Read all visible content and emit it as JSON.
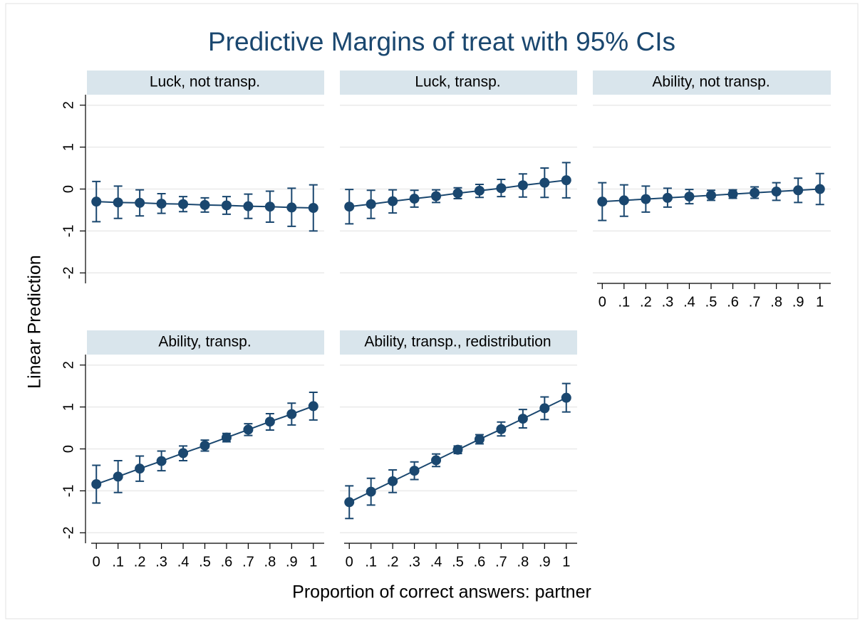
{
  "title": "Predictive Margins of treat with 95% CIs",
  "x_label": "Proportion of correct answers: partner",
  "y_label": "Linear Prediction",
  "chart_data": [
    {
      "type": "errorbar",
      "title": "Luck, not transp.",
      "color": "#1a476f",
      "x": [
        0,
        0.1,
        0.2,
        0.3,
        0.4,
        0.5,
        0.6,
        0.7,
        0.8,
        0.9,
        1
      ],
      "values": [
        -0.3,
        -0.32,
        -0.33,
        -0.35,
        -0.36,
        -0.38,
        -0.39,
        -0.41,
        -0.42,
        -0.44,
        -0.45
      ],
      "lower": [
        -0.78,
        -0.7,
        -0.64,
        -0.58,
        -0.54,
        -0.55,
        -0.6,
        -0.7,
        -0.79,
        -0.89,
        -1.0
      ],
      "upper": [
        0.18,
        0.07,
        -0.02,
        -0.11,
        -0.18,
        -0.21,
        -0.18,
        -0.12,
        -0.05,
        0.02,
        0.1
      ],
      "xlim": [
        -0.05,
        1.05
      ],
      "ylim": [
        -2.25,
        2.25
      ],
      "yticks": [
        2,
        1,
        0,
        -1,
        -2
      ],
      "grid": true
    },
    {
      "type": "errorbar",
      "title": "Luck, transp.",
      "color": "#1a476f",
      "x": [
        0,
        0.1,
        0.2,
        0.3,
        0.4,
        0.5,
        0.6,
        0.7,
        0.8,
        0.9,
        1
      ],
      "values": [
        -0.42,
        -0.36,
        -0.29,
        -0.23,
        -0.17,
        -0.1,
        -0.04,
        0.02,
        0.09,
        0.15,
        0.21
      ],
      "lower": [
        -0.83,
        -0.7,
        -0.57,
        -0.43,
        -0.32,
        -0.23,
        -0.2,
        -0.18,
        -0.19,
        -0.2,
        -0.21
      ],
      "upper": [
        -0.01,
        -0.03,
        -0.02,
        -0.03,
        -0.02,
        0.03,
        0.11,
        0.23,
        0.36,
        0.5,
        0.63
      ],
      "xlim": [
        -0.05,
        1.05
      ],
      "ylim": [
        -2.25,
        2.25
      ],
      "yticks": [
        2,
        1,
        0,
        -1,
        -2
      ],
      "grid": true
    },
    {
      "type": "errorbar",
      "title": "Ability, not transp.",
      "color": "#1a476f",
      "x": [
        0,
        0.1,
        0.2,
        0.3,
        0.4,
        0.5,
        0.6,
        0.7,
        0.8,
        0.9,
        1
      ],
      "values": [
        -0.3,
        -0.27,
        -0.24,
        -0.21,
        -0.18,
        -0.15,
        -0.12,
        -0.09,
        -0.06,
        -0.03,
        0.0
      ],
      "lower": [
        -0.75,
        -0.65,
        -0.55,
        -0.43,
        -0.35,
        -0.27,
        -0.22,
        -0.22,
        -0.27,
        -0.32,
        -0.37
      ],
      "upper": [
        0.15,
        0.1,
        0.07,
        0.02,
        -0.01,
        -0.03,
        -0.02,
        0.05,
        0.15,
        0.26,
        0.37
      ],
      "xlim": [
        -0.05,
        1.05
      ],
      "ylim": [
        -2.25,
        2.25
      ],
      "yticks": [
        2,
        1,
        0,
        -1,
        -2
      ],
      "grid": true,
      "xticks": [
        0,
        {
          "value": 0.1,
          "label": ".1"
        },
        {
          "value": 0.2,
          "label": ".2"
        },
        {
          "value": 0.3,
          "label": ".3"
        },
        {
          "value": 0.4,
          "label": ".4"
        },
        {
          "value": 0.5,
          "label": ".5"
        },
        {
          "value": 0.6,
          "label": ".6"
        },
        {
          "value": 0.7,
          "label": ".7"
        },
        {
          "value": 0.8,
          "label": ".8"
        },
        {
          "value": 0.9,
          "label": ".9"
        },
        1
      ]
    },
    {
      "type": "errorbar",
      "title": "Ability, transp.",
      "color": "#1a476f",
      "x": [
        0,
        0.1,
        0.2,
        0.3,
        0.4,
        0.5,
        0.6,
        0.7,
        0.8,
        0.9,
        1
      ],
      "values": [
        -0.84,
        -0.66,
        -0.47,
        -0.29,
        -0.1,
        0.08,
        0.27,
        0.46,
        0.65,
        0.83,
        1.02
      ],
      "lower": [
        -1.29,
        -1.04,
        -0.77,
        -0.52,
        -0.28,
        -0.05,
        0.17,
        0.32,
        0.45,
        0.57,
        0.69
      ],
      "upper": [
        -0.39,
        -0.28,
        -0.17,
        -0.05,
        0.07,
        0.21,
        0.37,
        0.6,
        0.84,
        1.09,
        1.35
      ],
      "xlim": [
        -0.05,
        1.05
      ],
      "ylim": [
        -2.25,
        2.25
      ],
      "yticks": [
        2,
        1,
        0,
        -1,
        -2
      ],
      "grid": true,
      "xticks": [
        0,
        {
          "value": 0.1,
          "label": ".1"
        },
        {
          "value": 0.2,
          "label": ".2"
        },
        {
          "value": 0.3,
          "label": ".3"
        },
        {
          "value": 0.4,
          "label": ".4"
        },
        {
          "value": 0.5,
          "label": ".5"
        },
        {
          "value": 0.6,
          "label": ".6"
        },
        {
          "value": 0.7,
          "label": ".7"
        },
        {
          "value": 0.8,
          "label": ".8"
        },
        {
          "value": 0.9,
          "label": ".9"
        },
        1
      ]
    },
    {
      "type": "errorbar",
      "title": "Ability, transp., redistribution",
      "color": "#1a476f",
      "x": [
        0,
        0.1,
        0.2,
        0.3,
        0.4,
        0.5,
        0.6,
        0.7,
        0.8,
        0.9,
        1
      ],
      "values": [
        -1.27,
        -1.02,
        -0.77,
        -0.52,
        -0.27,
        -0.02,
        0.23,
        0.47,
        0.72,
        0.97,
        1.22
      ],
      "lower": [
        -1.66,
        -1.34,
        -1.04,
        -0.73,
        -0.42,
        -0.11,
        0.12,
        0.31,
        0.5,
        0.7,
        0.88
      ],
      "upper": [
        -0.88,
        -0.7,
        -0.5,
        -0.31,
        -0.12,
        0.07,
        0.34,
        0.64,
        0.94,
        1.24,
        1.56
      ],
      "xlim": [
        -0.05,
        1.05
      ],
      "ylim": [
        -2.25,
        2.25
      ],
      "yticks": [
        2,
        1,
        0,
        -1,
        -2
      ],
      "grid": true,
      "xticks": [
        0,
        {
          "value": 0.1,
          "label": ".1"
        },
        {
          "value": 0.2,
          "label": ".2"
        },
        {
          "value": 0.3,
          "label": ".3"
        },
        {
          "value": 0.4,
          "label": ".4"
        },
        {
          "value": 0.5,
          "label": ".5"
        },
        {
          "value": 0.6,
          "label": ".6"
        },
        {
          "value": 0.7,
          "label": ".7"
        },
        {
          "value": 0.8,
          "label": ".8"
        },
        {
          "value": 0.9,
          "label": ".9"
        },
        1
      ]
    }
  ]
}
